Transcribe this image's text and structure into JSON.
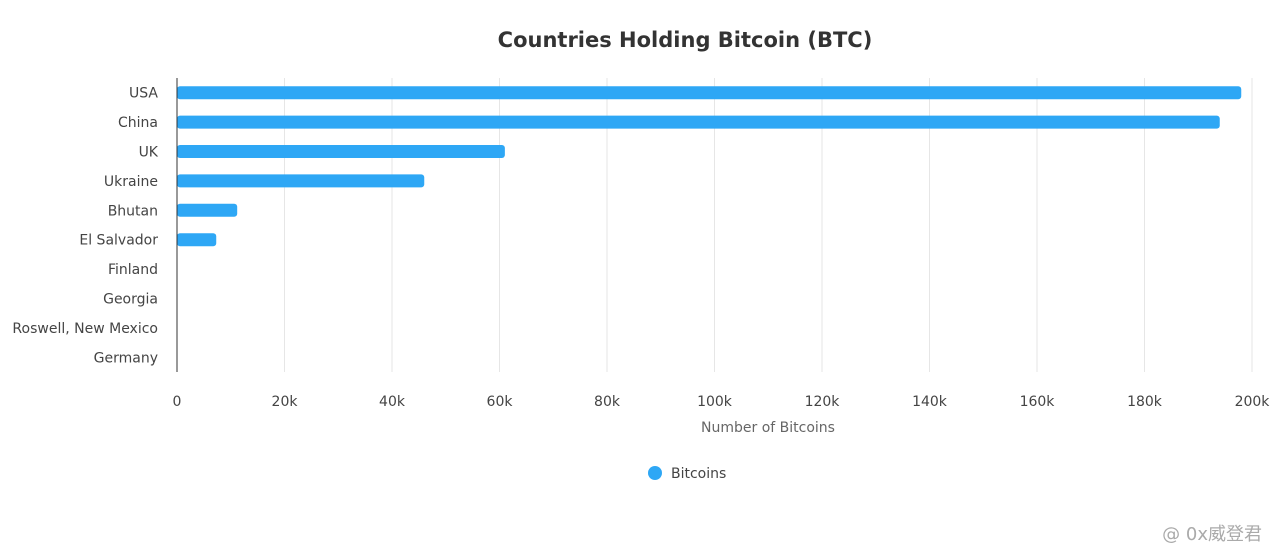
{
  "chart_data": {
    "type": "bar",
    "orientation": "horizontal",
    "title": "Countries Holding Bitcoin (BTC)",
    "xlabel": "Number of Bitcoins",
    "ylabel": "",
    "categories": [
      "USA",
      "China",
      "UK",
      "Ukraine",
      "Bhutan",
      "El Salvador",
      "Finland",
      "Georgia",
      "Roswell, New Mexico",
      "Germany"
    ],
    "series": [
      {
        "name": "Bitcoins",
        "values": [
          198000,
          194000,
          61000,
          46000,
          11200,
          7300,
          0,
          0,
          0,
          0
        ],
        "color": "#2ea7f5"
      }
    ],
    "xlim": [
      0,
      200000
    ],
    "xticks": [
      0,
      20000,
      40000,
      60000,
      80000,
      100000,
      120000,
      140000,
      160000,
      180000,
      200000
    ],
    "xtick_labels": [
      "0",
      "20k",
      "40k",
      "60k",
      "80k",
      "100k",
      "120k",
      "140k",
      "160k",
      "180k",
      "200k"
    ],
    "grid": "vertical",
    "legend": "bottom"
  },
  "watermark": "@ 0x威登君"
}
